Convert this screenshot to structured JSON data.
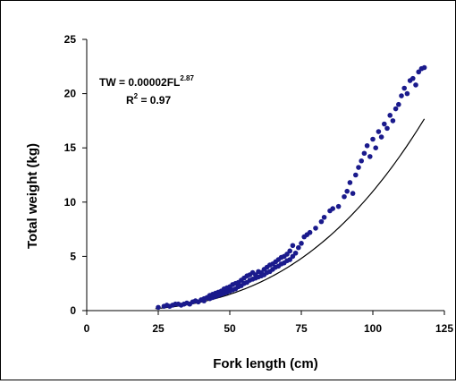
{
  "chart_data": {
    "type": "scatter",
    "title": "",
    "xlabel": "Fork length (cm)",
    "ylabel": "Total weight (kg)",
    "xlim": [
      0,
      125
    ],
    "ylim": [
      0,
      25
    ],
    "xticks": [
      0,
      25,
      50,
      75,
      100,
      125
    ],
    "yticks": [
      0,
      5,
      10,
      15,
      20,
      25
    ],
    "grid": false,
    "legend": "none",
    "point_color": "#1a1a8c",
    "line_color": "#000000",
    "annotation": {
      "equation_prefix": "TW = 0.00002FL",
      "equation_exponent": "2.87",
      "r2_label": "R",
      "r2_exp": "2",
      "r2_value": " = 0.97"
    },
    "fit": {
      "a": 2e-05,
      "b": 2.87,
      "x_range": [
        24,
        118
      ]
    },
    "points": [
      {
        "x": 25,
        "y": 0.3
      },
      {
        "x": 27,
        "y": 0.4
      },
      {
        "x": 28,
        "y": 0.5
      },
      {
        "x": 29,
        "y": 0.4
      },
      {
        "x": 30,
        "y": 0.5
      },
      {
        "x": 31,
        "y": 0.6
      },
      {
        "x": 32,
        "y": 0.6
      },
      {
        "x": 33,
        "y": 0.5
      },
      {
        "x": 34,
        "y": 0.6
      },
      {
        "x": 35,
        "y": 0.7
      },
      {
        "x": 36,
        "y": 0.6
      },
      {
        "x": 37,
        "y": 0.8
      },
      {
        "x": 38,
        "y": 0.9
      },
      {
        "x": 39,
        "y": 0.8
      },
      {
        "x": 40,
        "y": 1.0
      },
      {
        "x": 41,
        "y": 1.1
      },
      {
        "x": 41,
        "y": 0.9
      },
      {
        "x": 42,
        "y": 1.2
      },
      {
        "x": 43,
        "y": 1.4
      },
      {
        "x": 43,
        "y": 1.1
      },
      {
        "x": 44,
        "y": 1.5
      },
      {
        "x": 44,
        "y": 1.2
      },
      {
        "x": 45,
        "y": 1.6
      },
      {
        "x": 45,
        "y": 1.3
      },
      {
        "x": 46,
        "y": 1.7
      },
      {
        "x": 46,
        "y": 1.4
      },
      {
        "x": 47,
        "y": 1.8
      },
      {
        "x": 47,
        "y": 1.5
      },
      {
        "x": 48,
        "y": 2.0
      },
      {
        "x": 48,
        "y": 1.6
      },
      {
        "x": 49,
        "y": 2.1
      },
      {
        "x": 49,
        "y": 1.7
      },
      {
        "x": 50,
        "y": 2.2
      },
      {
        "x": 50,
        "y": 1.8
      },
      {
        "x": 51,
        "y": 2.4
      },
      {
        "x": 51,
        "y": 1.9
      },
      {
        "x": 52,
        "y": 2.5
      },
      {
        "x": 52,
        "y": 2.0
      },
      {
        "x": 53,
        "y": 2.6
      },
      {
        "x": 53,
        "y": 2.2
      },
      {
        "x": 54,
        "y": 2.8
      },
      {
        "x": 54,
        "y": 2.3
      },
      {
        "x": 55,
        "y": 3.0
      },
      {
        "x": 55,
        "y": 2.5
      },
      {
        "x": 56,
        "y": 3.2
      },
      {
        "x": 56,
        "y": 2.6
      },
      {
        "x": 57,
        "y": 3.3
      },
      {
        "x": 57,
        "y": 2.8
      },
      {
        "x": 58,
        "y": 3.5
      },
      {
        "x": 58,
        "y": 2.9
      },
      {
        "x": 59,
        "y": 3.3
      },
      {
        "x": 59,
        "y": 3.0
      },
      {
        "x": 60,
        "y": 3.6
      },
      {
        "x": 60,
        "y": 3.1
      },
      {
        "x": 61,
        "y": 3.5
      },
      {
        "x": 61,
        "y": 3.2
      },
      {
        "x": 62,
        "y": 3.8
      },
      {
        "x": 62,
        "y": 3.3
      },
      {
        "x": 63,
        "y": 4.0
      },
      {
        "x": 63,
        "y": 3.5
      },
      {
        "x": 64,
        "y": 4.2
      },
      {
        "x": 64,
        "y": 3.6
      },
      {
        "x": 65,
        "y": 4.3
      },
      {
        "x": 65,
        "y": 3.8
      },
      {
        "x": 66,
        "y": 4.5
      },
      {
        "x": 66,
        "y": 4.0
      },
      {
        "x": 67,
        "y": 4.7
      },
      {
        "x": 67,
        "y": 4.1
      },
      {
        "x": 68,
        "y": 4.9
      },
      {
        "x": 68,
        "y": 4.3
      },
      {
        "x": 69,
        "y": 5.0
      },
      {
        "x": 69,
        "y": 4.4
      },
      {
        "x": 70,
        "y": 5.2
      },
      {
        "x": 70,
        "y": 4.6
      },
      {
        "x": 71,
        "y": 5.5
      },
      {
        "x": 71,
        "y": 4.7
      },
      {
        "x": 72,
        "y": 6.0
      },
      {
        "x": 72,
        "y": 5.0
      },
      {
        "x": 73,
        "y": 5.3
      },
      {
        "x": 74,
        "y": 5.8
      },
      {
        "x": 75,
        "y": 6.2
      },
      {
        "x": 76,
        "y": 6.8
      },
      {
        "x": 77,
        "y": 7.0
      },
      {
        "x": 78,
        "y": 7.2
      },
      {
        "x": 80,
        "y": 7.6
      },
      {
        "x": 82,
        "y": 8.2
      },
      {
        "x": 83,
        "y": 8.6
      },
      {
        "x": 85,
        "y": 9.2
      },
      {
        "x": 86,
        "y": 9.4
      },
      {
        "x": 88,
        "y": 9.6
      },
      {
        "x": 90,
        "y": 10.5
      },
      {
        "x": 91,
        "y": 11.0
      },
      {
        "x": 92,
        "y": 11.8
      },
      {
        "x": 93,
        "y": 10.8
      },
      {
        "x": 94,
        "y": 12.5
      },
      {
        "x": 95,
        "y": 13.2
      },
      {
        "x": 96,
        "y": 13.8
      },
      {
        "x": 97,
        "y": 14.5
      },
      {
        "x": 98,
        "y": 15.2
      },
      {
        "x": 99,
        "y": 14.2
      },
      {
        "x": 100,
        "y": 15.8
      },
      {
        "x": 101,
        "y": 15.0
      },
      {
        "x": 102,
        "y": 16.5
      },
      {
        "x": 103,
        "y": 16.0
      },
      {
        "x": 104,
        "y": 17.2
      },
      {
        "x": 105,
        "y": 16.8
      },
      {
        "x": 106,
        "y": 18.0
      },
      {
        "x": 107,
        "y": 17.5
      },
      {
        "x": 108,
        "y": 18.6
      },
      {
        "x": 109,
        "y": 19.0
      },
      {
        "x": 110,
        "y": 19.8
      },
      {
        "x": 111,
        "y": 20.5
      },
      {
        "x": 112,
        "y": 20.0
      },
      {
        "x": 113,
        "y": 21.2
      },
      {
        "x": 114,
        "y": 21.4
      },
      {
        "x": 115,
        "y": 20.8
      },
      {
        "x": 116,
        "y": 22.0
      },
      {
        "x": 117,
        "y": 22.3
      },
      {
        "x": 118,
        "y": 22.4
      }
    ]
  }
}
